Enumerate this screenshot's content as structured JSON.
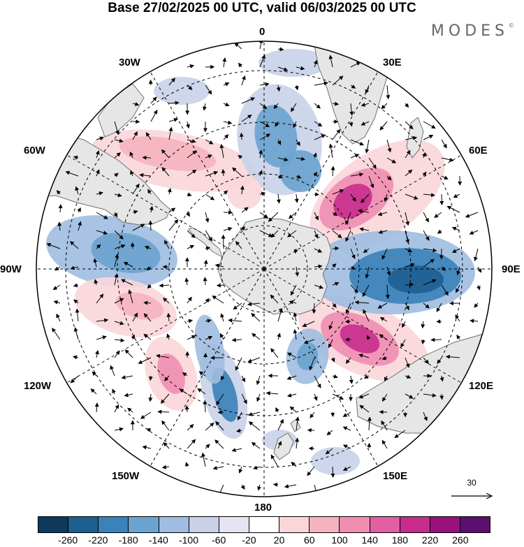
{
  "title": "Base 27/02/2025 00 UTC, valid 06/03/2025 00 UTC",
  "brand": {
    "name": "MODES",
    "mark": "©"
  },
  "map": {
    "projection": "south-polar-stereographic",
    "longitude_labels": [
      {
        "key": "lon0",
        "text": "0"
      },
      {
        "key": "lon30e",
        "text": "30E"
      },
      {
        "key": "lon60e",
        "text": "60E"
      },
      {
        "key": "lon90e",
        "text": "90E"
      },
      {
        "key": "lon120e",
        "text": "120E"
      },
      {
        "key": "lon150e",
        "text": "150E"
      },
      {
        "key": "lon180",
        "text": "180"
      },
      {
        "key": "lon150w",
        "text": "150W"
      },
      {
        "key": "lon120w",
        "text": "120W"
      },
      {
        "key": "lon90w",
        "text": "90W"
      },
      {
        "key": "lon60w",
        "text": "60W"
      },
      {
        "key": "lon30w",
        "text": "30W"
      }
    ],
    "land_color": "#e6e6e6",
    "coast_color": "#707070"
  },
  "reference_vector": {
    "label": "30",
    "icon": "arrow-right-icon"
  },
  "colorbar": {
    "colors": [
      "#0d3a5c",
      "#1d5f8f",
      "#3a82b9",
      "#6aa3cf",
      "#9ebde0",
      "#c8d1e8",
      "#e6e4f2",
      "#ffffff",
      "#fad6d9",
      "#f5b3c0",
      "#f08db1",
      "#e35fa3",
      "#c82c8d",
      "#97127d",
      "#5c0f6e"
    ],
    "ticks": [
      "-260",
      "-220",
      "-180",
      "-140",
      "-100",
      "-60",
      "-20",
      "20",
      "60",
      "100",
      "140",
      "180",
      "220",
      "260"
    ]
  }
}
